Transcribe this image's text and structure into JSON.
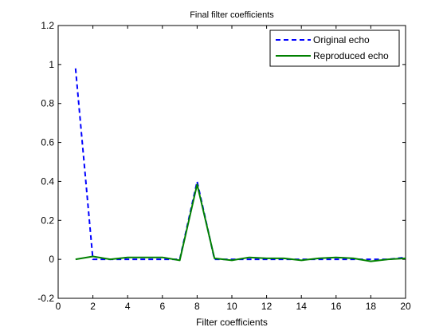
{
  "chart_data": {
    "type": "line",
    "title": "Final filter coefficients",
    "xlabel": "Filter coefficients",
    "ylabel": "",
    "xlim": [
      0,
      20
    ],
    "ylim": [
      -0.2,
      1.2
    ],
    "x_ticks": [
      0,
      2,
      4,
      6,
      8,
      10,
      12,
      14,
      16,
      18,
      20
    ],
    "y_ticks": [
      -0.2,
      0,
      0.2,
      0.4,
      0.6,
      0.8,
      1,
      1.2
    ],
    "x_tick_labels": [
      "0",
      "2",
      "4",
      "6",
      "8",
      "10",
      "12",
      "14",
      "16",
      "18",
      "20"
    ],
    "y_tick_labels": [
      "-0.2",
      "0",
      "0.2",
      "0.4",
      "0.6",
      "0.8",
      "1",
      "1.2"
    ],
    "grid": false,
    "legend_position": "top-right",
    "x": [
      1,
      2,
      3,
      4,
      5,
      6,
      7,
      8,
      9,
      10,
      11,
      12,
      13,
      14,
      15,
      16,
      17,
      18,
      19,
      20
    ],
    "series": [
      {
        "name": "Original echo",
        "color": "#0000ff",
        "style": "dashed",
        "values": [
          0.98,
          0,
          0,
          0,
          0,
          0,
          0,
          0.4,
          0,
          0,
          0,
          0,
          0,
          0,
          0,
          0,
          0,
          0,
          0,
          0.01
        ]
      },
      {
        "name": "Reproduced echo",
        "color": "#008000",
        "style": "solid",
        "values": [
          0.0,
          0.015,
          0.0,
          0.01,
          0.01,
          0.01,
          -0.005,
          0.385,
          0.005,
          -0.005,
          0.01,
          0.005,
          0.005,
          -0.005,
          0.005,
          0.01,
          0.005,
          -0.01,
          0.0,
          0.005
        ]
      }
    ]
  }
}
